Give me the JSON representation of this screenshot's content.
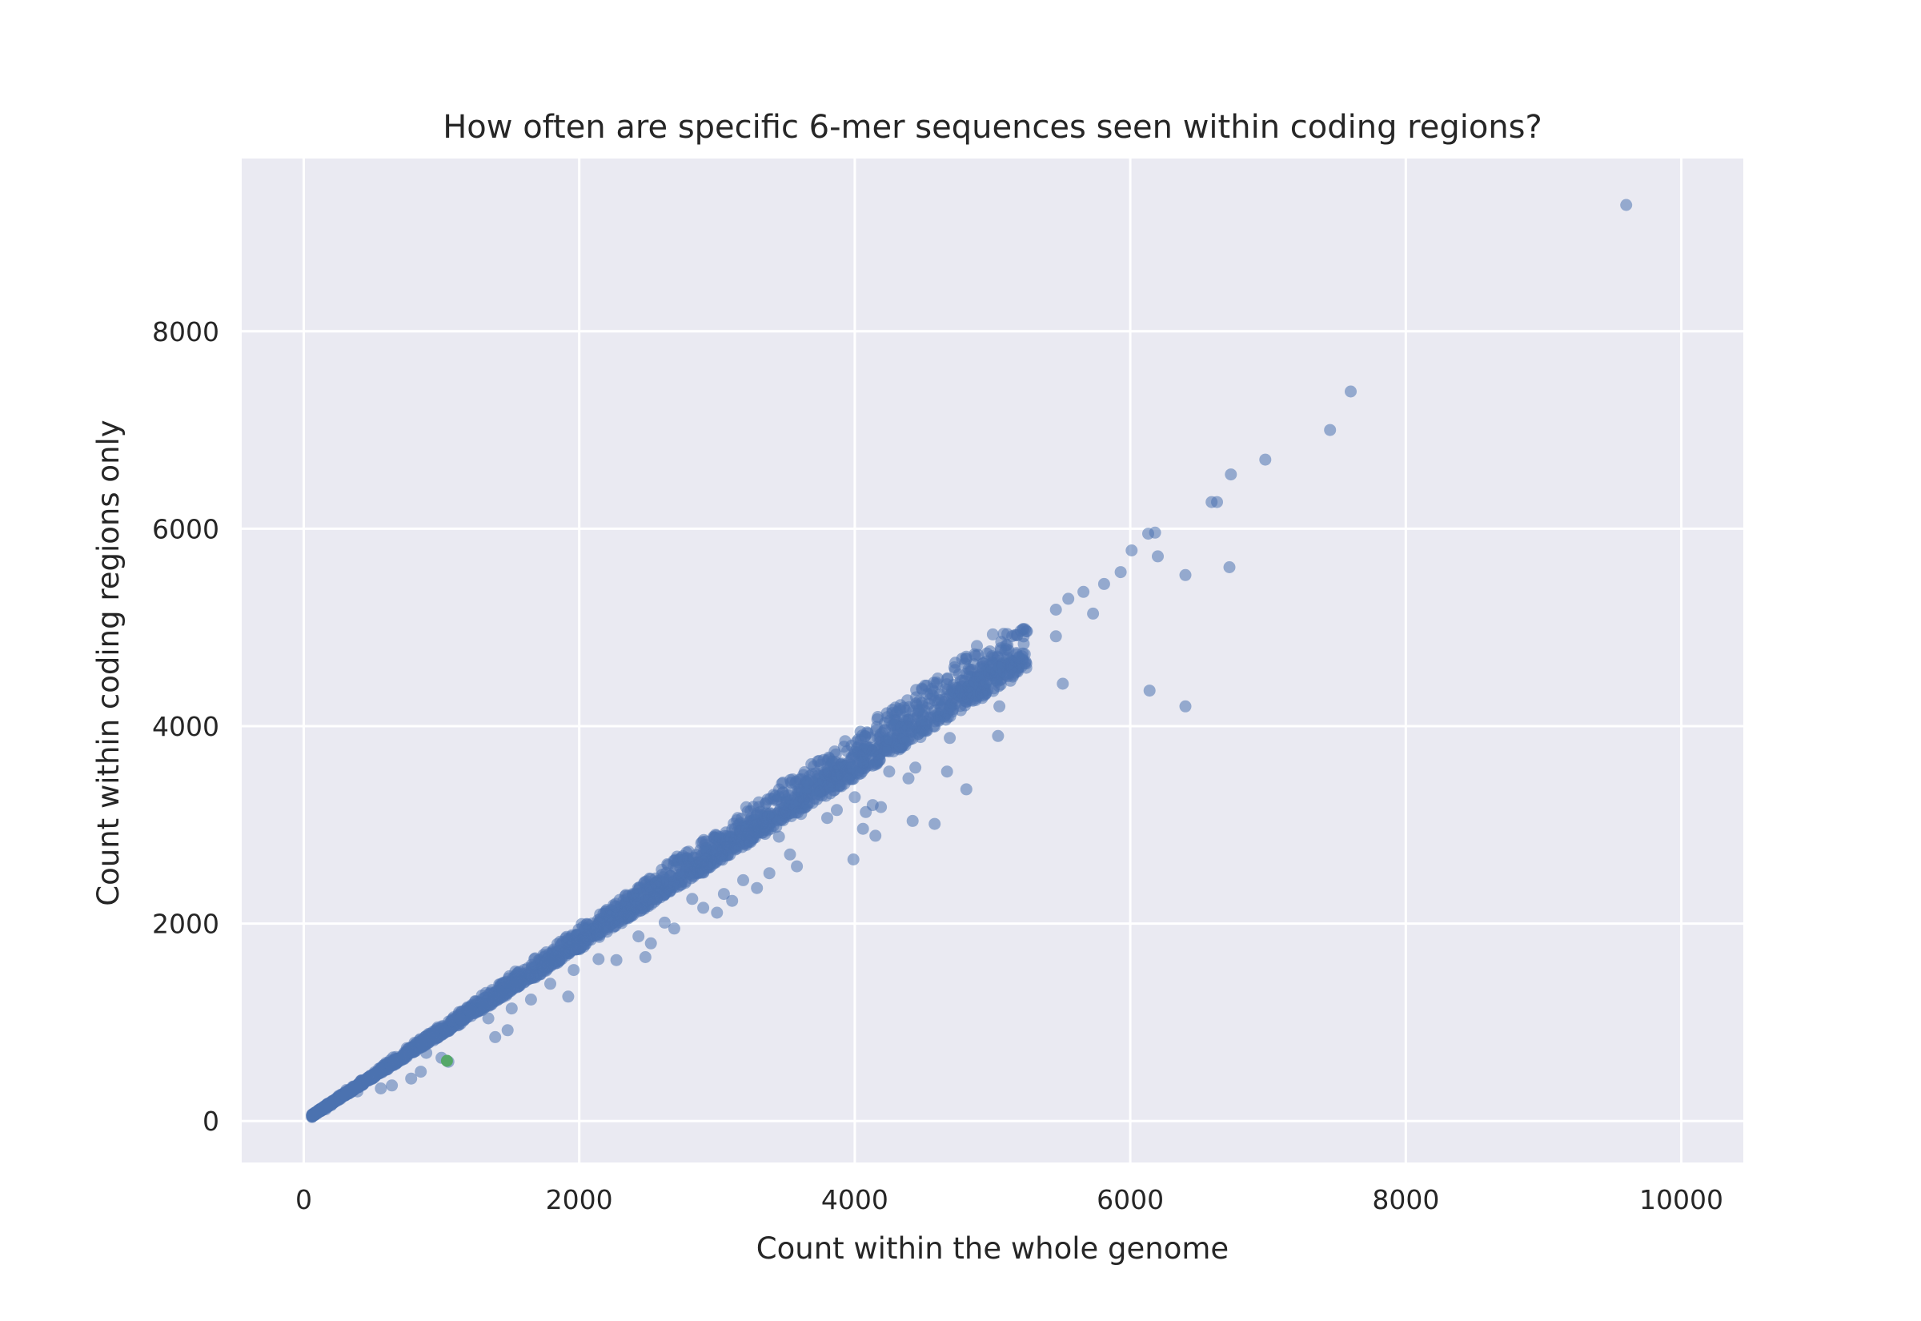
{
  "chart_data": {
    "type": "scatter",
    "title": "How often are specific 6-mer sequences seen within coding regions?",
    "xlabel": "Count within the whole genome",
    "ylabel": "Count within coding regions only",
    "xlim": [
      -450,
      10450
    ],
    "ylim": [
      -420,
      9750
    ],
    "xticks": [
      0,
      2000,
      4000,
      6000,
      8000,
      10000
    ],
    "yticks": [
      0,
      2000,
      4000,
      6000,
      8000
    ],
    "xtick_labels": [
      "0",
      "2000",
      "4000",
      "6000",
      "8000",
      "10000"
    ],
    "ytick_labels": [
      "0",
      "2000",
      "4000",
      "6000",
      "8000"
    ],
    "grid": true,
    "series": [
      {
        "color": "#4c72b0",
        "opacity": 0.55,
        "points": [
          [
            9600,
            9280
          ],
          [
            7600,
            7390
          ],
          [
            7450,
            7000
          ],
          [
            6980,
            6700
          ],
          [
            6730,
            6550
          ],
          [
            6630,
            6270
          ],
          [
            6590,
            6270
          ],
          [
            6720,
            5610
          ],
          [
            6400,
            5530
          ],
          [
            6400,
            4200
          ],
          [
            6140,
            4360
          ],
          [
            6180,
            5960
          ],
          [
            6130,
            5950
          ],
          [
            6200,
            5720
          ],
          [
            6010,
            5780
          ],
          [
            5930,
            5560
          ],
          [
            5810,
            5440
          ],
          [
            5730,
            5140
          ],
          [
            5660,
            5360
          ],
          [
            5550,
            5290
          ],
          [
            5510,
            4430
          ],
          [
            5460,
            5180
          ],
          [
            5460,
            4910
          ],
          [
            5250,
            4960
          ],
          [
            5180,
            4920
          ],
          [
            5190,
            4700
          ],
          [
            5130,
            4460
          ],
          [
            5060,
            4790
          ],
          [
            5050,
            4200
          ],
          [
            5040,
            3900
          ],
          [
            4990,
            4600
          ],
          [
            4920,
            4340
          ],
          [
            4870,
            4450
          ],
          [
            4810,
            4530
          ],
          [
            4800,
            4210
          ],
          [
            4810,
            3360
          ],
          [
            4690,
            3880
          ],
          [
            4670,
            3540
          ],
          [
            4580,
            3010
          ],
          [
            4580,
            4160
          ],
          [
            4440,
            3580
          ],
          [
            4420,
            3040
          ],
          [
            4390,
            3470
          ],
          [
            4380,
            3960
          ],
          [
            4250,
            3540
          ],
          [
            4220,
            3760
          ],
          [
            4190,
            3180
          ],
          [
            4150,
            2890
          ],
          [
            4130,
            3200
          ],
          [
            4080,
            3130
          ],
          [
            4060,
            2960
          ],
          [
            4000,
            3280
          ],
          [
            3990,
            2650
          ],
          [
            3870,
            3150
          ],
          [
            3800,
            3070
          ],
          [
            3720,
            3310
          ],
          [
            3610,
            3110
          ],
          [
            3580,
            2580
          ],
          [
            3530,
            2700
          ],
          [
            3450,
            2880
          ],
          [
            3380,
            2510
          ],
          [
            3290,
            2360
          ],
          [
            3190,
            2440
          ],
          [
            3110,
            2230
          ],
          [
            3000,
            2110
          ],
          [
            3050,
            2300
          ],
          [
            2900,
            2160
          ],
          [
            2820,
            2250
          ],
          [
            2690,
            1950
          ],
          [
            2620,
            2010
          ],
          [
            2520,
            1800
          ],
          [
            2480,
            1660
          ],
          [
            2430,
            1870
          ],
          [
            2270,
            1630
          ],
          [
            2140,
            1640
          ],
          [
            1960,
            1530
          ],
          [
            1920,
            1260
          ],
          [
            1790,
            1390
          ],
          [
            1650,
            1230
          ],
          [
            1510,
            1140
          ],
          [
            1480,
            920
          ],
          [
            1390,
            850
          ],
          [
            1340,
            1040
          ],
          [
            1050,
            600
          ],
          [
            1000,
            640
          ],
          [
            890,
            690
          ],
          [
            850,
            500
          ],
          [
            780,
            430
          ],
          [
            640,
            360
          ],
          [
            560,
            330
          ],
          [
            430,
            370
          ],
          [
            390,
            300
          ],
          [
            300,
            260
          ],
          [
            200,
            160
          ],
          [
            160,
            120
          ],
          [
            110,
            90
          ],
          [
            80,
            60
          ],
          [
            60,
            40
          ]
        ],
        "band": {
          "n": 2600,
          "x_min": 60,
          "x_max": 5250,
          "slope_low": 0.87,
          "slope_high": 0.99
        }
      },
      {
        "color": "#55a868",
        "opacity": 1.0,
        "points": [
          [
            1040,
            610
          ]
        ]
      }
    ]
  }
}
